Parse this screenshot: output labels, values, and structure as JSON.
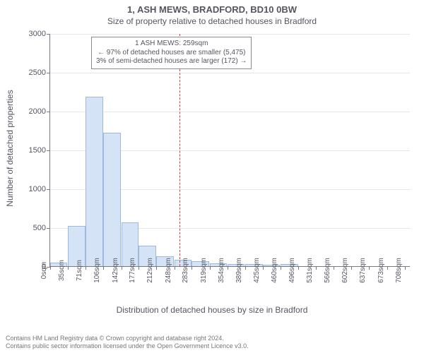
{
  "chart": {
    "type": "histogram",
    "title_main": "1, ASH MEWS, BRADFORD, BD10 0BW",
    "title_sub": "Size of property relative to detached houses in Bradford",
    "ylabel": "Number of detached properties",
    "xlabel": "Distribution of detached houses by size in Bradford",
    "background_color": "#ffffff",
    "grid_color": "#e5e5ea",
    "axis_color": "#777a85",
    "text_color": "#555560",
    "bar_fill": "#d5e3f7",
    "bar_stroke": "#9fb8de",
    "marker_color": "#cc4444",
    "ylim": [
      0,
      3000
    ],
    "ytick_step": 500,
    "yticks": [
      0,
      500,
      1000,
      1500,
      2000,
      2500,
      3000
    ],
    "x_unit": "sqm",
    "x_max": 720,
    "xtick_values": [
      0,
      35,
      71,
      106,
      142,
      177,
      212,
      248,
      283,
      319,
      354,
      389,
      425,
      460,
      496,
      531,
      566,
      602,
      637,
      673,
      708
    ],
    "bars": [
      {
        "x": 0,
        "w": 35,
        "v": 50
      },
      {
        "x": 35,
        "w": 36,
        "v": 520
      },
      {
        "x": 71,
        "w": 35,
        "v": 2180
      },
      {
        "x": 106,
        "w": 36,
        "v": 1720
      },
      {
        "x": 142,
        "w": 35,
        "v": 560
      },
      {
        "x": 177,
        "w": 35,
        "v": 260
      },
      {
        "x": 212,
        "w": 36,
        "v": 130
      },
      {
        "x": 248,
        "w": 35,
        "v": 80
      },
      {
        "x": 283,
        "w": 36,
        "v": 60
      },
      {
        "x": 319,
        "w": 35,
        "v": 40
      },
      {
        "x": 354,
        "w": 35,
        "v": 30
      },
      {
        "x": 389,
        "w": 36,
        "v": 25
      },
      {
        "x": 425,
        "w": 35,
        "v": 20
      },
      {
        "x": 460,
        "w": 36,
        "v": 30
      },
      {
        "x": 496,
        "w": 35,
        "v": 0
      },
      {
        "x": 531,
        "w": 35,
        "v": 0
      },
      {
        "x": 566,
        "w": 36,
        "v": 0
      },
      {
        "x": 602,
        "w": 35,
        "v": 0
      },
      {
        "x": 637,
        "w": 36,
        "v": 0
      },
      {
        "x": 673,
        "w": 35,
        "v": 0
      }
    ],
    "marker_x": 259,
    "annotation": {
      "line1": "1 ASH MEWS: 259sqm",
      "line2": "← 97% of detached houses are smaller (5,475)",
      "line3": "3% of semi-detached houses are larger (172) →"
    },
    "footer_line1": "Contains HM Land Registry data © Crown copyright and database right 2024.",
    "footer_line2": "Contains public sector information licensed under the Open Government Licence v3.0.",
    "title_fontsize": 13,
    "subtitle_fontsize": 12,
    "label_fontsize": 12,
    "tick_fontsize": 11,
    "xtick_fontsize": 10,
    "annotation_fontsize": 10,
    "footer_fontsize": 9
  }
}
